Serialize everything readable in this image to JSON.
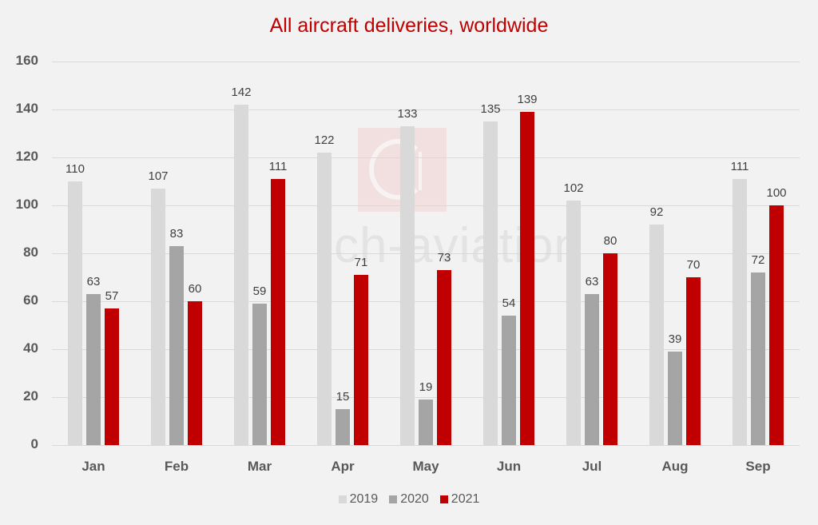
{
  "title": "All aircraft deliveries, worldwide",
  "watermark": {
    "text": "ch-aviation"
  },
  "colors": {
    "2019": "#d9d9d9",
    "2020": "#a5a5a5",
    "2021": "#c00000",
    "title": "#c00000",
    "background": "#f2f2f2"
  },
  "legend": [
    {
      "label": "2019",
      "color": "#d9d9d9"
    },
    {
      "label": "2020",
      "color": "#a5a5a5"
    },
    {
      "label": "2021",
      "color": "#c00000"
    }
  ],
  "chart_data": {
    "type": "bar",
    "title": "All aircraft deliveries, worldwide",
    "xlabel": "",
    "ylabel": "",
    "ylim": [
      0,
      160
    ],
    "yticks": [
      0,
      20,
      40,
      60,
      80,
      100,
      120,
      140,
      160
    ],
    "grid": true,
    "legend_position": "bottom",
    "categories": [
      "Jan",
      "Feb",
      "Mar",
      "Apr",
      "May",
      "Jun",
      "Jul",
      "Aug",
      "Sep"
    ],
    "series": [
      {
        "name": "2019",
        "color": "#d9d9d9",
        "values": [
          110,
          107,
          142,
          122,
          133,
          135,
          102,
          92,
          111
        ]
      },
      {
        "name": "2020",
        "color": "#a5a5a5",
        "values": [
          63,
          83,
          59,
          15,
          19,
          54,
          63,
          39,
          72
        ]
      },
      {
        "name": "2021",
        "color": "#c00000",
        "values": [
          57,
          60,
          111,
          71,
          73,
          139,
          80,
          70,
          100
        ]
      }
    ]
  }
}
